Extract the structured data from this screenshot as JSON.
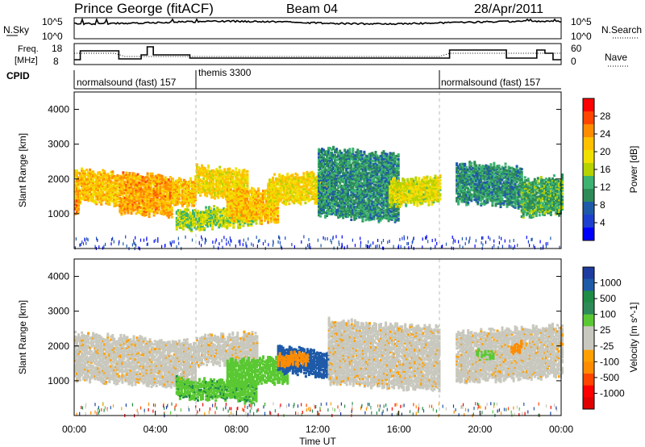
{
  "header": {
    "station": "Prince George (fitACF)",
    "beam": "Beam 04",
    "date": "28/Apr/2011"
  },
  "sky_panel": {
    "left_label": "N.Sky",
    "right_label": "N.Search",
    "left_ticks": [
      "10^5",
      "10^0"
    ],
    "right_ticks": [
      "10^5",
      "10^0"
    ]
  },
  "freq_panel": {
    "left_label_1": "Freq.",
    "left_label_2": "[MHz]",
    "right_label": "Nave",
    "left_ticks": [
      "18",
      "8"
    ],
    "right_ticks": [
      "60",
      "0"
    ]
  },
  "cpid": {
    "label": "CPID",
    "segments": [
      {
        "text": "normalsound (fast) 157",
        "start_hour": 0
      },
      {
        "text": "themis 3300",
        "start_hour": 6
      },
      {
        "text": "normalsound (fast) 157",
        "start_hour": 18
      }
    ]
  },
  "power_colorbar": {
    "label": "Power [dB]",
    "ticks": [
      "28",
      "24",
      "20",
      "16",
      "12",
      "8",
      "4"
    ],
    "colors": [
      "#ff0000",
      "#ff4500",
      "#ff8c00",
      "#ffc000",
      "#f0e000",
      "#b6d200",
      "#3cb371",
      "#2e8b57",
      "#1e5aa8",
      "#1e40d0",
      "#0000ff"
    ]
  },
  "velocity_colorbar": {
    "label": "Velocity [m s^-1]",
    "ticks": [
      "1000",
      "500",
      "100",
      "25",
      "-25",
      "-100",
      "-500",
      "-1000"
    ],
    "colors": [
      "#1e3ca0",
      "#1e5aa8",
      "#1e8c46",
      "#2e8b57",
      "#5ac832",
      "#c8c8be",
      "#c8c8be",
      "#ffa000",
      "#ff8c00",
      "#ff4500",
      "#ff0000",
      "#e00000"
    ]
  },
  "chart_data": [
    {
      "type": "heatmap",
      "title": "Power [dB]",
      "xlabel": "",
      "ylabel": "Slant Range [km]",
      "xlim_hours": [
        0,
        24
      ],
      "ylim_km": [
        0,
        4500
      ],
      "yticks": [
        1000,
        2000,
        3000,
        4000
      ],
      "colorbar_range_db": [
        0,
        32
      ],
      "echo_bands": [
        {
          "t0": 0.0,
          "t1": 2.1,
          "range_km": [
            1400,
            2300
          ],
          "power_db": 22
        },
        {
          "t0": 0.0,
          "t1": 0.2,
          "range_km": [
            1000,
            1400
          ],
          "power_db": 26
        },
        {
          "t0": 2.2,
          "t1": 4.8,
          "range_km": [
            1100,
            2200
          ],
          "power_db": 24
        },
        {
          "t0": 4.8,
          "t1": 6.0,
          "range_km": [
            1300,
            2000
          ],
          "power_db": 22
        },
        {
          "t0": 6.0,
          "t1": 8.5,
          "range_km": [
            1600,
            2400
          ],
          "power_db": 20
        },
        {
          "t0": 5.0,
          "t1": 9.0,
          "range_km": [
            600,
            1100
          ],
          "power_db": 16
        },
        {
          "t0": 7.5,
          "t1": 10.0,
          "range_km": [
            900,
            1800
          ],
          "power_db": 22
        },
        {
          "t0": 9.5,
          "t1": 12.5,
          "range_km": [
            1300,
            2100
          ],
          "power_db": 20
        },
        {
          "t0": 12.0,
          "t1": 16.0,
          "range_km": [
            1000,
            2900
          ],
          "power_db": 10
        },
        {
          "t0": 15.5,
          "t1": 18.0,
          "range_km": [
            1300,
            2000
          ],
          "power_db": 18
        },
        {
          "t0": 18.8,
          "t1": 22.0,
          "range_km": [
            1400,
            2500
          ],
          "power_db": 10
        },
        {
          "t0": 22.0,
          "t1": 24.0,
          "range_km": [
            1000,
            2000
          ],
          "power_db": 12
        }
      ]
    },
    {
      "type": "heatmap",
      "title": "Velocity [m s^-1]",
      "xlabel": "Time UT",
      "ylabel": "Slant Range [km]",
      "xlim_hours": [
        0,
        24
      ],
      "xticks": [
        "00:00",
        "04:00",
        "08:00",
        "12:00",
        "16:00",
        "20:00",
        "00:00"
      ],
      "ylim_km": [
        0,
        4500
      ],
      "yticks": [
        1000,
        2000,
        3000,
        4000
      ],
      "colorbar_range_ms": [
        -1000,
        1000
      ],
      "echo_bands": [
        {
          "t0": 0.0,
          "t1": 6.0,
          "range_km": [
            1100,
            2400
          ],
          "velocity_ms": 0
        },
        {
          "t0": 6.0,
          "t1": 9.0,
          "range_km": [
            1500,
            2300
          ],
          "velocity_ms": 0
        },
        {
          "t0": 5.0,
          "t1": 9.0,
          "range_km": [
            600,
            1100
          ],
          "velocity_ms": 80
        },
        {
          "t0": 7.5,
          "t1": 10.5,
          "range_km": [
            900,
            1600
          ],
          "velocity_ms": 70
        },
        {
          "t0": 10.0,
          "t1": 12.5,
          "range_km": [
            1300,
            2000
          ],
          "velocity_ms": 400
        },
        {
          "t0": 10.0,
          "t1": 11.5,
          "range_km": [
            1500,
            1800
          ],
          "velocity_ms": -200
        },
        {
          "t0": 12.5,
          "t1": 18.0,
          "range_km": [
            1000,
            2800
          ],
          "velocity_ms": 0
        },
        {
          "t0": 18.8,
          "t1": 24.0,
          "range_km": [
            1000,
            2400
          ],
          "velocity_ms": 0
        },
        {
          "t0": 19.8,
          "t1": 20.6,
          "range_km": [
            1700,
            1900
          ],
          "velocity_ms": 60
        },
        {
          "t0": 21.5,
          "t1": 22.0,
          "range_km": [
            1900,
            2100
          ],
          "velocity_ms": -150
        }
      ]
    }
  ]
}
